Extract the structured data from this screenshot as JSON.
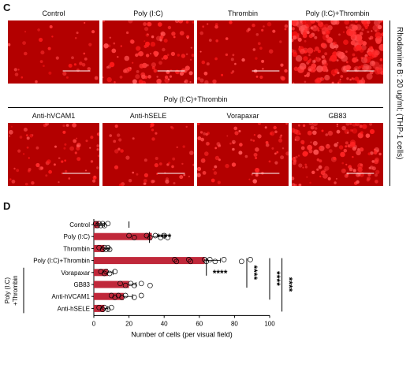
{
  "panel_c": {
    "letter": "C",
    "row1_labels": [
      "Control",
      "Poly (I:C)",
      "Thrombin",
      "Poly (I:C)+Thrombin"
    ],
    "row1_densities": [
      0.06,
      0.35,
      0.12,
      0.9
    ],
    "group_label": "Poly (I:C)+Thrombin",
    "row2_labels": [
      "Anti-hVCAM1",
      "Anti-hSELE",
      "Vorapaxar",
      "GB83"
    ],
    "row2_densities": [
      0.18,
      0.12,
      0.2,
      0.45
    ],
    "side_label": "Rhodamine B: 20 ug/ml; (THP-1 cells)",
    "image_color": "#b30000"
  },
  "panel_d": {
    "letter": "D",
    "bracket_label": "Poly (I:C) +Thrombin",
    "bracket_lines": [
      "Poly (I:C)",
      "+Thrombin"
    ]
  },
  "chart_data": {
    "type": "bar",
    "orientation": "horizontal",
    "categories": [
      "Control",
      "Poly (I:C)",
      "Thrombin",
      "Poly (I:C)+Thrombin",
      "Vorapaxar",
      "GB83",
      "Anti-hVCAM1",
      "Anti-hSELE"
    ],
    "values": [
      3,
      33,
      6,
      63,
      8,
      20,
      17,
      6
    ],
    "errors": [
      3,
      7,
      3,
      9,
      3,
      4,
      5,
      2
    ],
    "points": [
      [
        1,
        2,
        3,
        4,
        5,
        6,
        8
      ],
      [
        20,
        23,
        30,
        32,
        35,
        38,
        40,
        42
      ],
      [
        3,
        5,
        6,
        7,
        8,
        9
      ],
      [
        46,
        47,
        54,
        55,
        63,
        64,
        66,
        69,
        74,
        84,
        89
      ],
      [
        4,
        6,
        7,
        9,
        12
      ],
      [
        15,
        18,
        21,
        23,
        27,
        32
      ],
      [
        10,
        12,
        14,
        16,
        18,
        23,
        27
      ],
      [
        3,
        5,
        6,
        8,
        10
      ]
    ],
    "xlabel": "Number of cells (per visual field)",
    "xticks": [
      0,
      20,
      40,
      60,
      80,
      100
    ],
    "xlim": [
      0,
      100
    ],
    "bar_color": "#c0283a",
    "significance": [
      {
        "label": "****",
        "from": 1,
        "to": 1
      },
      {
        "label": "****",
        "from": 3,
        "to": 4
      },
      {
        "label": "****",
        "from": 3,
        "to": 5
      },
      {
        "label": "****",
        "from": 3,
        "to": 6
      },
      {
        "label": "****",
        "from": 3,
        "to": 7
      }
    ]
  }
}
